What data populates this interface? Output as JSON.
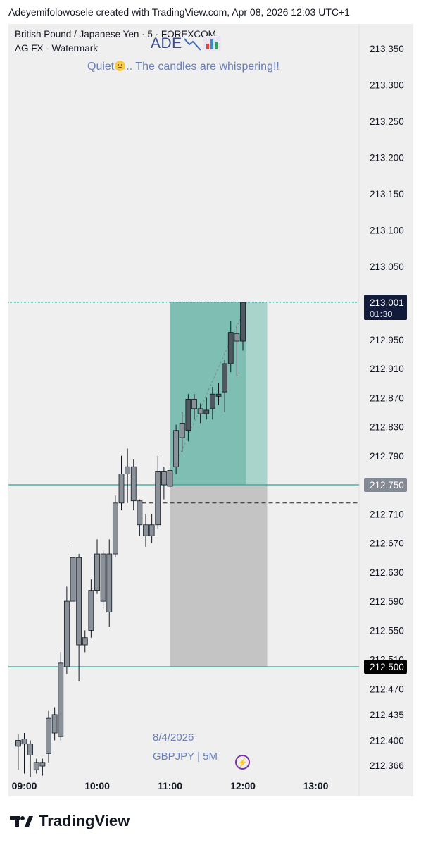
{
  "header": {
    "text": "Adeyemifolowosele created with TradingView.com, Apr 08, 2026 12:03 UTC+1"
  },
  "symbol": {
    "title": "British Pound / Japanese Yen · 5 · FOREXCOM",
    "subtitle": "AG FX - Watermark"
  },
  "watermark": {
    "logo_text": "ADE",
    "quote_before": "Quiet",
    "quote_after": ".. The candles are whispering!!",
    "date": "8/4/2026",
    "pair": "GBPJPY | 5M"
  },
  "footer": {
    "brand": "TradingView"
  },
  "colors": {
    "background": "#efefef",
    "candle_body": "#8a9199",
    "candle_bull_recent": "#4e5860",
    "wick": "#131722",
    "target_zone": "#7fbfb3",
    "target_zone_light": "#a9d4cc",
    "stop_zone": "#c4c4c4",
    "level_line": "#26a69a",
    "current_price_label": "#131b3a",
    "entry_label": "#848a96",
    "stop_label": "#000000"
  },
  "chart_data": {
    "type": "candlestick",
    "title": "British Pound / Japanese Yen · 5 · FOREXCOM",
    "interval": "5",
    "grid": false,
    "price_axis": {
      "position": "right",
      "ylim": [
        212.355,
        213.38
      ],
      "ticks": [
        {
          "value": 213.35,
          "label": "213.350"
        },
        {
          "value": 213.3,
          "label": "213.300"
        },
        {
          "value": 213.25,
          "label": "213.250"
        },
        {
          "value": 213.2,
          "label": "213.200"
        },
        {
          "value": 213.15,
          "label": "213.150"
        },
        {
          "value": 213.1,
          "label": "213.100"
        },
        {
          "value": 213.05,
          "label": "213.050"
        },
        {
          "value": 212.95,
          "label": "212.950"
        },
        {
          "value": 212.91,
          "label": "212.910"
        },
        {
          "value": 212.87,
          "label": "212.870"
        },
        {
          "value": 212.83,
          "label": "212.830"
        },
        {
          "value": 212.79,
          "label": "212.790"
        },
        {
          "value": 212.71,
          "label": "212.710"
        },
        {
          "value": 212.67,
          "label": "212.670"
        },
        {
          "value": 212.63,
          "label": "212.630"
        },
        {
          "value": 212.59,
          "label": "212.590"
        },
        {
          "value": 212.55,
          "label": "212.550"
        },
        {
          "value": 212.51,
          "label": "212.510"
        },
        {
          "value": 212.47,
          "label": "212.470"
        },
        {
          "value": 212.435,
          "label": "212.435"
        },
        {
          "value": 212.4,
          "label": "212.400"
        },
        {
          "value": 212.366,
          "label": "212.366"
        }
      ]
    },
    "time_axis": {
      "ticks": [
        {
          "label": "09:00",
          "hour": 9.0
        },
        {
          "label": "10:00",
          "hour": 10.0
        },
        {
          "label": "11:00",
          "hour": 11.0
        },
        {
          "label": "12:00",
          "hour": 12.0
        },
        {
          "label": "13:00",
          "hour": 13.0
        }
      ]
    },
    "candles": [
      {
        "time": "08:55",
        "open": 212.392,
        "high": 212.408,
        "low": 212.36,
        "close": 212.4
      },
      {
        "time": "09:00",
        "open": 212.395,
        "high": 212.41,
        "low": 212.355,
        "close": 212.402
      },
      {
        "time": "09:05",
        "open": 212.395,
        "high": 212.4,
        "low": 212.35,
        "close": 212.38
      },
      {
        "time": "09:10",
        "open": 212.37,
        "high": 212.375,
        "low": 212.355,
        "close": 212.36
      },
      {
        "time": "09:15",
        "open": 212.365,
        "high": 212.375,
        "low": 212.352,
        "close": 212.37
      },
      {
        "time": "09:20",
        "open": 212.382,
        "high": 212.44,
        "low": 212.37,
        "close": 212.43
      },
      {
        "time": "09:25",
        "open": 212.41,
        "high": 212.445,
        "low": 212.4,
        "close": 212.435
      },
      {
        "time": "09:30",
        "open": 212.405,
        "high": 212.52,
        "low": 212.4,
        "close": 212.505
      },
      {
        "time": "09:35",
        "open": 212.5,
        "high": 212.61,
        "low": 212.49,
        "close": 212.59
      },
      {
        "time": "09:40",
        "open": 212.59,
        "high": 212.67,
        "low": 212.58,
        "close": 212.65
      },
      {
        "time": "09:45",
        "open": 212.65,
        "high": 212.655,
        "low": 212.48,
        "close": 212.53
      },
      {
        "time": "09:50",
        "open": 212.53,
        "high": 212.55,
        "low": 212.52,
        "close": 212.54
      },
      {
        "time": "09:55",
        "open": 212.55,
        "high": 212.62,
        "low": 212.54,
        "close": 212.605
      },
      {
        "time": "10:00",
        "open": 212.605,
        "high": 212.675,
        "low": 212.6,
        "close": 212.655
      },
      {
        "time": "10:05",
        "open": 212.655,
        "high": 212.66,
        "low": 212.58,
        "close": 212.59
      },
      {
        "time": "10:10",
        "open": 212.575,
        "high": 212.675,
        "low": 212.555,
        "close": 212.655
      },
      {
        "time": "10:15",
        "open": 212.655,
        "high": 212.735,
        "low": 212.65,
        "close": 212.725
      },
      {
        "time": "10:20",
        "open": 212.725,
        "high": 212.79,
        "low": 212.715,
        "close": 212.765
      },
      {
        "time": "10:25",
        "open": 212.765,
        "high": 212.8,
        "low": 212.725,
        "close": 212.775
      },
      {
        "time": "10:30",
        "open": 212.775,
        "high": 212.785,
        "low": 212.715,
        "close": 212.728
      },
      {
        "time": "10:35",
        "open": 212.728,
        "high": 212.73,
        "low": 212.68,
        "close": 212.695
      },
      {
        "time": "10:40",
        "open": 212.695,
        "high": 212.71,
        "low": 212.665,
        "close": 212.68
      },
      {
        "time": "10:45",
        "open": 212.68,
        "high": 212.71,
        "low": 212.67,
        "close": 212.695
      },
      {
        "time": "10:50",
        "open": 212.695,
        "high": 212.79,
        "low": 212.69,
        "close": 212.768
      },
      {
        "time": "10:55",
        "open": 212.768,
        "high": 212.775,
        "low": 212.73,
        "close": 212.75
      },
      {
        "time": "11:00",
        "open": 212.748,
        "high": 212.775,
        "low": 212.725,
        "close": 212.77
      },
      {
        "time": "11:05",
        "open": 212.775,
        "high": 212.833,
        "low": 212.765,
        "close": 212.825
      },
      {
        "time": "11:10",
        "open": 212.815,
        "high": 212.85,
        "low": 212.795,
        "close": 212.835
      },
      {
        "time": "11:15",
        "open": 212.825,
        "high": 212.875,
        "low": 212.81,
        "close": 212.868
      },
      {
        "time": "11:20",
        "open": 212.868,
        "high": 212.875,
        "low": 212.84,
        "close": 212.855
      },
      {
        "time": "11:25",
        "open": 212.855,
        "high": 212.862,
        "low": 212.835,
        "close": 212.848
      },
      {
        "time": "11:30",
        "open": 212.848,
        "high": 212.87,
        "low": 212.84,
        "close": 212.853
      },
      {
        "time": "11:35",
        "open": 212.855,
        "high": 212.885,
        "low": 212.84,
        "close": 212.875
      },
      {
        "time": "11:40",
        "open": 212.872,
        "high": 212.89,
        "low": 212.86,
        "close": 212.875
      },
      {
        "time": "11:45",
        "open": 212.878,
        "high": 212.922,
        "low": 212.85,
        "close": 212.917
      },
      {
        "time": "11:50",
        "open": 212.917,
        "high": 212.975,
        "low": 212.905,
        "close": 212.96
      },
      {
        "time": "11:55",
        "open": 212.958,
        "high": 212.97,
        "low": 212.9,
        "close": 212.948
      },
      {
        "time": "12:00",
        "open": 212.948,
        "high": 213.001,
        "low": 212.935,
        "close": 213.001
      }
    ],
    "position_tool": {
      "entry": 212.75,
      "target": 213.001,
      "stop": 212.5,
      "start_time": "11:00",
      "end_time": "12:20"
    },
    "price_labels": [
      {
        "value": 213.001,
        "label": "213.001",
        "countdown": "01:30",
        "kind": "current"
      },
      {
        "value": 212.75,
        "label": "212.750",
        "kind": "entry"
      },
      {
        "value": 212.5,
        "label": "212.500",
        "kind": "stop"
      }
    ],
    "dashed_level": 212.725
  }
}
